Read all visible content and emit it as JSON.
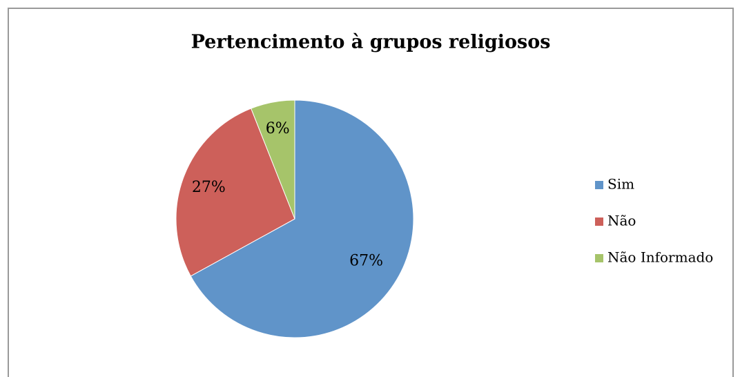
{
  "chart_data": {
    "type": "pie",
    "title": "Pertencimento à grupos religiosos",
    "categories": [
      "Sim",
      "Não",
      "Não Informado"
    ],
    "values": [
      67,
      27,
      6
    ],
    "value_labels": [
      "67%",
      "27%",
      "6%"
    ],
    "colors": [
      "#6094c9",
      "#cd605a",
      "#a6c46a"
    ],
    "legend": "right"
  }
}
